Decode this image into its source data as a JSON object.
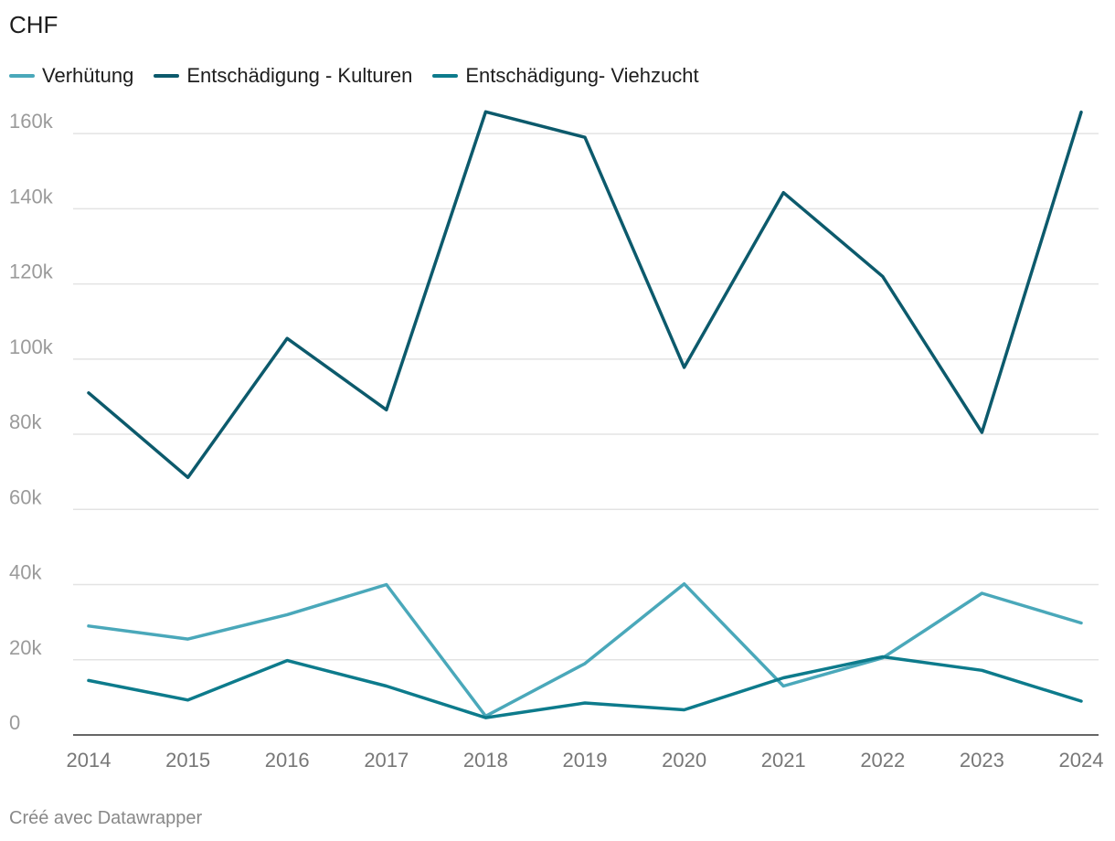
{
  "chart_data": {
    "type": "line",
    "title": "CHF",
    "xlabel": "",
    "ylabel": "",
    "categories": [
      "2014",
      "2015",
      "2016",
      "2017",
      "2018",
      "2019",
      "2020",
      "2021",
      "2022",
      "2023",
      "2024"
    ],
    "ylim": [
      0,
      170000
    ],
    "yticks": [
      0,
      20000,
      40000,
      60000,
      80000,
      100000,
      120000,
      140000,
      160000
    ],
    "ytick_labels": [
      "0",
      "20k",
      "40k",
      "60k",
      "80k",
      "100k",
      "120k",
      "140k",
      "160k"
    ],
    "grid": true,
    "legend_position": "top-left",
    "series": [
      {
        "name": "Verhütung",
        "color": "#4aa8ba",
        "values": [
          29000,
          25500,
          32000,
          40000,
          5000,
          19000,
          40200,
          13000,
          20500,
          37700,
          29800
        ]
      },
      {
        "name": "Entschädigung - Kulturen",
        "color": "#0c5a6c",
        "values": [
          91000,
          68500,
          105500,
          86500,
          165800,
          159000,
          97800,
          144300,
          122000,
          80500,
          165700
        ]
      },
      {
        "name": "Entschädigung- Viehzucht",
        "color": "#0d7b8c",
        "values": [
          14500,
          9300,
          19800,
          13000,
          4600,
          8500,
          6700,
          15200,
          20800,
          17200,
          9000
        ]
      }
    ]
  },
  "footer": "Créé avec Datawrapper"
}
